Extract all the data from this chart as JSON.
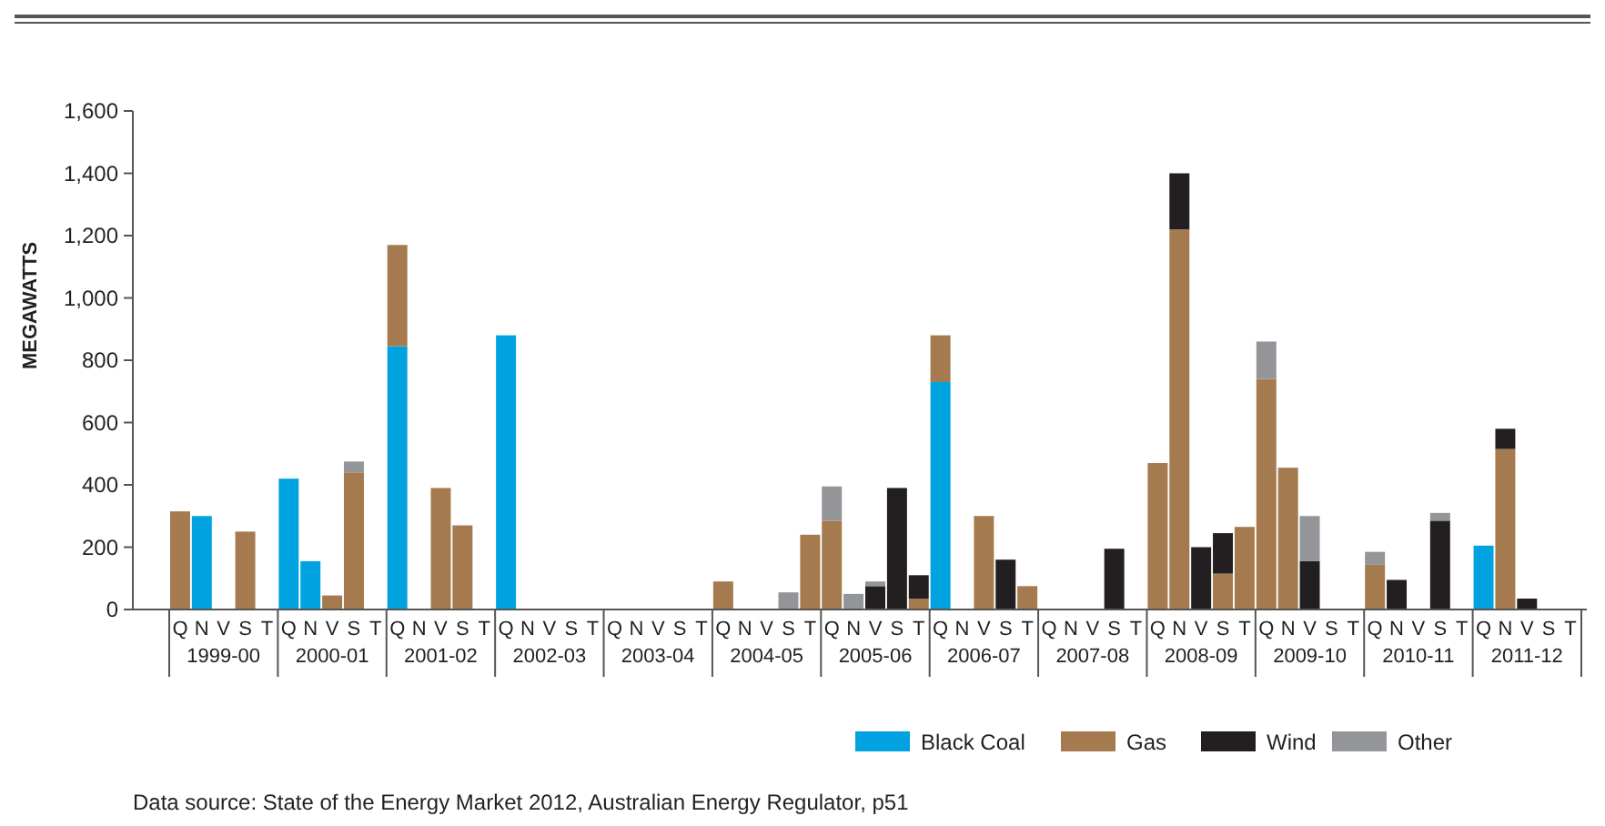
{
  "chart_data": {
    "type": "bar",
    "stacked": true,
    "ylabel": "MEGAWATTS",
    "ylim": [
      0,
      1600
    ],
    "yticks": [
      0,
      {
        "value": 200,
        "label": "200"
      },
      {
        "value": 400,
        "label": "400"
      },
      {
        "value": 600,
        "label": "600"
      },
      {
        "value": 800,
        "label": "800"
      },
      {
        "value": 1000,
        "label": "1,000"
      },
      {
        "value": 1200,
        "label": "1,200"
      },
      {
        "value": 1400,
        "label": "1,400"
      },
      {
        "value": 1600,
        "label": "1,600"
      }
    ],
    "categories": [
      "Q",
      "N",
      "V",
      "S",
      "T",
      "Q",
      "N",
      "V",
      "S",
      "T",
      "Q",
      "N",
      "V",
      "S",
      "T",
      "Q",
      "N",
      "V",
      "S",
      "T",
      "Q",
      "N",
      "V",
      "S",
      "T",
      "Q",
      "N",
      "V",
      "S",
      "T",
      "Q",
      "N",
      "V",
      "S",
      "T",
      "Q",
      "N",
      "V",
      "S",
      "T",
      "Q",
      "N",
      "V",
      "S",
      "T",
      "Q",
      "N",
      "V",
      "S",
      "T",
      "Q",
      "N",
      "V",
      "S",
      "T",
      "Q",
      "N",
      "V",
      "S",
      "T",
      "Q",
      "N",
      "V",
      "S",
      "T"
    ],
    "series": [
      {
        "name": "Black Coal",
        "color": "#00a3e0",
        "values": [
          0,
          300,
          0,
          0,
          0,
          420,
          155,
          0,
          0,
          0,
          845,
          0,
          0,
          0,
          0,
          880,
          0,
          0,
          0,
          0,
          0,
          0,
          0,
          0,
          0,
          0,
          0,
          0,
          0,
          0,
          0,
          0,
          0,
          0,
          0,
          730,
          0,
          0,
          0,
          0,
          0,
          0,
          0,
          0,
          0,
          0,
          0,
          0,
          0,
          0,
          0,
          0,
          0,
          0,
          0,
          0,
          0,
          0,
          0,
          0,
          205,
          0,
          0,
          0,
          0
        ]
      },
      {
        "name": "Gas",
        "color": "#a57a4e",
        "values": [
          315,
          0,
          0,
          250,
          0,
          0,
          0,
          45,
          440,
          0,
          325,
          0,
          390,
          270,
          0,
          0,
          0,
          0,
          0,
          0,
          0,
          0,
          0,
          0,
          0,
          90,
          0,
          0,
          0,
          240,
          285,
          0,
          0,
          0,
          35,
          150,
          0,
          300,
          0,
          75,
          0,
          0,
          0,
          0,
          0,
          470,
          1220,
          0,
          115,
          265,
          740,
          455,
          0,
          0,
          0,
          145,
          0,
          0,
          0,
          0,
          0,
          515,
          0,
          0,
          0
        ]
      },
      {
        "name": "Wind",
        "color": "#231f20",
        "values": [
          0,
          0,
          0,
          0,
          0,
          0,
          0,
          0,
          0,
          0,
          0,
          0,
          0,
          0,
          0,
          0,
          0,
          0,
          0,
          0,
          0,
          0,
          0,
          0,
          0,
          0,
          0,
          0,
          0,
          0,
          0,
          0,
          75,
          390,
          75,
          0,
          0,
          0,
          160,
          0,
          0,
          0,
          0,
          195,
          0,
          0,
          180,
          200,
          130,
          0,
          0,
          0,
          155,
          0,
          0,
          0,
          95,
          0,
          285,
          0,
          0,
          65,
          35,
          0,
          0
        ]
      },
      {
        "name": "Other",
        "color": "#939598",
        "values": [
          0,
          0,
          0,
          0,
          0,
          0,
          0,
          0,
          35,
          0,
          0,
          0,
          0,
          0,
          0,
          0,
          0,
          0,
          0,
          0,
          0,
          0,
          0,
          0,
          0,
          0,
          0,
          0,
          55,
          0,
          110,
          50,
          15,
          0,
          0,
          0,
          0,
          0,
          0,
          0,
          0,
          0,
          0,
          0,
          0,
          0,
          0,
          0,
          0,
          0,
          120,
          0,
          145,
          0,
          0,
          40,
          0,
          0,
          25,
          0,
          0,
          0,
          0,
          0,
          0
        ]
      }
    ],
    "legend": "bottom right",
    "annotations": [
      "1999-00",
      "2000-01",
      "2001-02",
      "2002-03",
      "2003-04",
      "2004-05",
      "2005-06",
      "2006-07",
      "2007-08",
      "2008-09",
      "2009-10",
      "2010-11",
      "2011-12",
      "Data source: State of the Energy Market 2012, Australian Energy Regulator, p51"
    ]
  }
}
